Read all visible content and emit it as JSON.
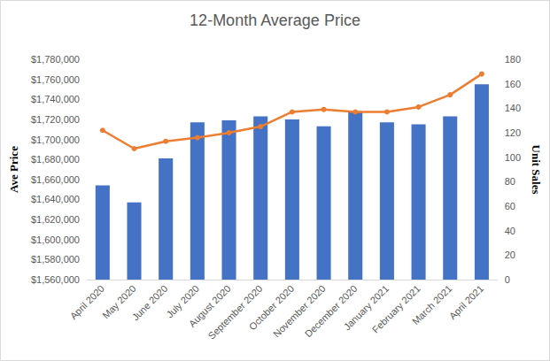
{
  "chart_data": {
    "type": "bar",
    "title": "12-Month Average Price",
    "y_label": "Ave Price",
    "y2_label": "Unit Sales",
    "categories": [
      "April 2020",
      "May 2020",
      "June 2020",
      "July 2020",
      "August 2020",
      "September 2020",
      "October 2020",
      "November 2020",
      "December 2020",
      "January 2021",
      "February 2021",
      "March 2021",
      "April 2021"
    ],
    "series": [
      {
        "type": "bar",
        "color": "#4472c4",
        "values": [
          1654000,
          1637000,
          1681000,
          1717000,
          1719000,
          1723000,
          1720000,
          1713000,
          1728000,
          1717000,
          1715000,
          1723000,
          1755000
        ]
      },
      {
        "type": "line",
        "color": "#ed7d31",
        "axis": "y2",
        "marker": "circle",
        "values": [
          122,
          107,
          113,
          116,
          120,
          125,
          137,
          139,
          137,
          137,
          141,
          151,
          168
        ]
      }
    ],
    "ylim": [
      1560000,
      1780000
    ],
    "yticks": [
      {
        "value": 1560000,
        "label": "$1,560,000"
      },
      {
        "value": 1580000,
        "label": "$1,580,000"
      },
      {
        "value": 1600000,
        "label": "$1,600,000"
      },
      {
        "value": 1620000,
        "label": "$1,620,000"
      },
      {
        "value": 1640000,
        "label": "$1,640,000"
      },
      {
        "value": 1660000,
        "label": "$1,660,000"
      },
      {
        "value": 1680000,
        "label": "$1,680,000"
      },
      {
        "value": 1700000,
        "label": "$1,700,000"
      },
      {
        "value": 1720000,
        "label": "$1,720,000"
      },
      {
        "value": 1740000,
        "label": "$1,740,000"
      },
      {
        "value": 1760000,
        "label": "$1,760,000"
      },
      {
        "value": 1780000,
        "label": "$1,780,000"
      }
    ],
    "y2lim": [
      0,
      180
    ],
    "y2ticks": [
      0,
      20,
      40,
      60,
      80,
      100,
      120,
      140,
      160,
      180
    ],
    "grid": false
  }
}
